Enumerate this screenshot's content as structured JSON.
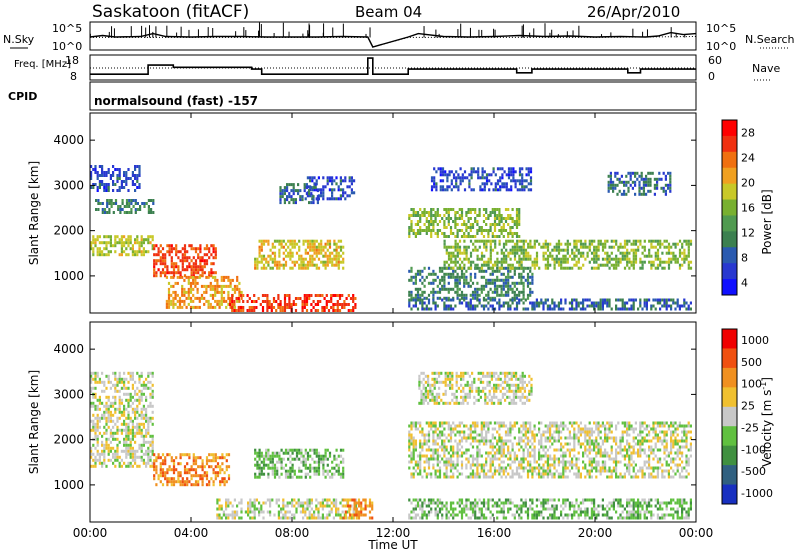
{
  "header": {
    "station": "Saskatoon (fitACF)",
    "beam": "Beam 04",
    "date": "26/Apr/2010"
  },
  "chart_data": [
    {
      "type": "line",
      "panel": "noise",
      "left_label": "N.Sky",
      "right_label": "N.Search",
      "left_ticks": [
        "10^5",
        "10^0"
      ],
      "right_ticks": [
        "10^5",
        "10^0"
      ],
      "scale": "log",
      "x_range": [
        "00:00",
        "24:00"
      ],
      "series": [
        {
          "line": "solid",
          "x": [
            0,
            0.5,
            1,
            2,
            2.5,
            3,
            4,
            5,
            6,
            7,
            8,
            9,
            10,
            11,
            11.2,
            12.6,
            13,
            14,
            15,
            16,
            17,
            18,
            19,
            20,
            21,
            22,
            22.5,
            23,
            23.5,
            24
          ],
          "y_log": [
            2.3,
            2.6,
            2.3,
            2.4,
            3.0,
            2.4,
            2.3,
            2.4,
            2.4,
            2.3,
            2.3,
            2.3,
            2.4,
            2.3,
            0.2,
            2.3,
            3.0,
            2.4,
            2.3,
            2.4,
            2.6,
            2.4,
            2.5,
            2.3,
            2.4,
            2.3,
            2.5,
            3.2,
            2.8,
            3.0
          ]
        },
        {
          "line": "dotted",
          "x": [
            0,
            4,
            8,
            11,
            11.2,
            12.6,
            16,
            20,
            22,
            24
          ],
          "y_log": [
            2.2,
            2.2,
            2.2,
            2.2,
            0.2,
            2.2,
            2.2,
            2.2,
            2.3,
            2.4
          ]
        }
      ]
    },
    {
      "type": "line",
      "panel": "frequency",
      "left_label": "Freq. [MHz]",
      "right_label": "Nave",
      "left_ticks": [
        18,
        8
      ],
      "right_ticks": [
        60,
        0
      ],
      "cpid_label": "CPID",
      "cpid_value": "normalsound (fast) -157",
      "x_range": [
        "00:00",
        "24:00"
      ],
      "series": [
        {
          "name_hidden": "freq",
          "line": "solid",
          "x": [
            0,
            2.3,
            2.3,
            3.3,
            3.3,
            6.4,
            6.4,
            6.8,
            6.8,
            11.0,
            11.0,
            11.2,
            11.2,
            12.6,
            12.6,
            16.9,
            16.9,
            17.5,
            17.5,
            21.3,
            21.3,
            21.8,
            21.8,
            24
          ],
          "y": [
            10.2,
            10.2,
            14.3,
            14.3,
            13.3,
            13.3,
            12.5,
            12.5,
            10.2,
            10.2,
            17.5,
            17.5,
            10.2,
            10.2,
            12.5,
            12.5,
            10.8,
            10.8,
            12.5,
            12.5,
            10.8,
            10.8,
            12.5,
            12.5
          ]
        },
        {
          "name_hidden": "nave",
          "line": "dotted",
          "x": [
            0,
            24
          ],
          "y": [
            13.0,
            13.0
          ]
        }
      ]
    },
    {
      "type": "heatmap",
      "panel": "power",
      "ylabel": "Slant Range [km]",
      "yticks": [
        1000,
        2000,
        3000,
        4000
      ],
      "ylim": [
        180,
        4600
      ],
      "x_range_hours": [
        0,
        24
      ],
      "colorbar_label": "Power [dB]",
      "colorbar_ticks": [
        4,
        8,
        12,
        16,
        20,
        24,
        28
      ],
      "colorbar_colors": [
        "#1010ff",
        "#2838d0",
        "#2a5ab0",
        "#3c8050",
        "#509a50",
        "#78b030",
        "#c8c828",
        "#f0a020",
        "#f07010",
        "#f03010",
        "#ff0000"
      ],
      "gap_hours": [
        11.2,
        12.6
      ],
      "regions": [
        {
          "x0": 0.0,
          "x1": 2.0,
          "r0": 2900,
          "r1": 3450,
          "level": 6
        },
        {
          "x0": 0.2,
          "x1": 2.5,
          "r0": 2400,
          "r1": 2700,
          "level": 10
        },
        {
          "x0": 0.0,
          "x1": 2.5,
          "r0": 1500,
          "r1": 1900,
          "level": 18
        },
        {
          "x0": 2.5,
          "x1": 5.0,
          "r0": 1000,
          "r1": 1700,
          "level": 26
        },
        {
          "x0": 3.0,
          "x1": 6.0,
          "r0": 300,
          "r1": 1000,
          "level": 22
        },
        {
          "x0": 5.5,
          "x1": 10.5,
          "r0": 250,
          "r1": 600,
          "level": 27
        },
        {
          "x0": 6.5,
          "x1": 10.0,
          "r0": 1150,
          "r1": 1800,
          "level": 20
        },
        {
          "x0": 8.5,
          "x1": 10.5,
          "r0": 2700,
          "r1": 3200,
          "level": 6
        },
        {
          "x0": 7.5,
          "x1": 9.0,
          "r0": 2600,
          "r1": 3050,
          "level": 8
        },
        {
          "x0": 12.6,
          "x1": 17.0,
          "r0": 1900,
          "r1": 2500,
          "level": 16
        },
        {
          "x0": 12.6,
          "x1": 17.5,
          "r0": 500,
          "r1": 1200,
          "level": 10
        },
        {
          "x0": 14.0,
          "x1": 23.8,
          "r0": 1200,
          "r1": 1800,
          "level": 16
        },
        {
          "x0": 12.6,
          "x1": 23.8,
          "r0": 250,
          "r1": 500,
          "level": 8
        },
        {
          "x0": 13.5,
          "x1": 17.5,
          "r0": 2900,
          "r1": 3400,
          "level": 6
        },
        {
          "x0": 20.5,
          "x1": 23.0,
          "r0": 2800,
          "r1": 3300,
          "level": 8
        }
      ]
    },
    {
      "type": "heatmap",
      "panel": "velocity",
      "ylabel": "Slant Range [km]",
      "yticks": [
        1000,
        2000,
        3000,
        4000
      ],
      "ylim": [
        180,
        4600
      ],
      "x_range_hours": [
        0,
        24
      ],
      "colorbar_label": "Velocity [m s^-1]",
      "colorbar_ticks": [
        "1000",
        "500",
        "100",
        "25",
        "-25",
        "-100",
        "-500",
        "-1000"
      ],
      "colorbar_colors": [
        "#1830c0",
        "#306080",
        "#409040",
        "#60c040",
        "#c8c8c8",
        "#f0c030",
        "#f09020",
        "#f05010",
        "#f00000"
      ],
      "gap_hours": [
        11.2,
        12.6
      ],
      "regions": [
        {
          "x0": 0.0,
          "x1": 2.5,
          "r0": 1400,
          "r1": 3500,
          "level": 4
        },
        {
          "x0": 2.5,
          "x1": 5.5,
          "r0": 1000,
          "r1": 1700,
          "level": 6
        },
        {
          "x0": 6.5,
          "x1": 10.0,
          "r0": 1200,
          "r1": 1800,
          "level": 3
        },
        {
          "x0": 5.0,
          "x1": 10.5,
          "r0": 250,
          "r1": 700,
          "level": 4
        },
        {
          "x0": 10.0,
          "x1": 11.2,
          "r0": 250,
          "r1": 700,
          "level": 6
        },
        {
          "x0": 12.6,
          "x1": 23.8,
          "r0": 1200,
          "r1": 2400,
          "level": 4
        },
        {
          "x0": 12.6,
          "x1": 23.8,
          "r0": 250,
          "r1": 700,
          "level": 3
        },
        {
          "x0": 13.0,
          "x1": 17.5,
          "r0": 2800,
          "r1": 3500,
          "level": 4
        }
      ]
    }
  ],
  "x_axis": {
    "ticks": [
      "00:00",
      "04:00",
      "08:00",
      "12:00",
      "16:00",
      "20:00",
      "00:00"
    ],
    "label": "Time UT"
  }
}
